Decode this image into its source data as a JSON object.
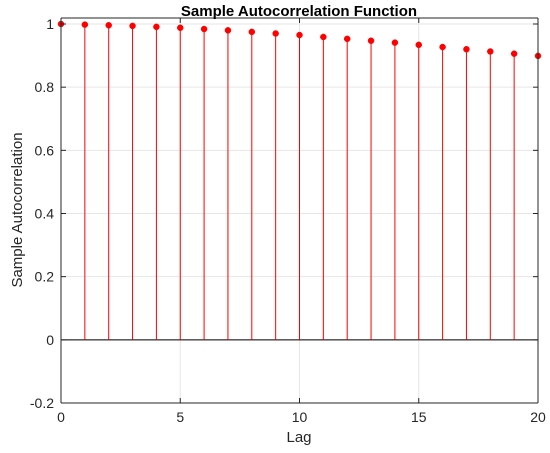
{
  "chart_data": {
    "type": "stem",
    "title": "Sample Autocorrelation Function",
    "xlabel": "Lag",
    "ylabel": "Sample Autocorrelation",
    "xlim": [
      0,
      20
    ],
    "ylim": [
      -0.2,
      1
    ],
    "x_ticks": [
      0,
      5,
      10,
      15,
      20
    ],
    "x_tick_labels": [
      "0",
      "5",
      "10",
      "15",
      "20"
    ],
    "y_ticks": [
      -0.2,
      0,
      0.2,
      0.4,
      0.6,
      0.8,
      1
    ],
    "y_tick_labels": [
      "-0.2",
      "0",
      "0.2",
      "0.4",
      "0.6",
      "0.8",
      "1"
    ],
    "grid": true,
    "legend": "none",
    "series": [
      {
        "x": [
          0,
          1,
          2,
          3,
          4,
          5,
          6,
          7,
          8,
          9,
          10,
          11,
          12,
          13,
          14,
          15,
          16,
          17,
          18,
          19,
          20
        ],
        "values": [
          1.0,
          0.998,
          0.996,
          0.994,
          0.991,
          0.988,
          0.984,
          0.98,
          0.975,
          0.97,
          0.965,
          0.959,
          0.953,
          0.947,
          0.941,
          0.934,
          0.927,
          0.92,
          0.913,
          0.906,
          0.899
        ],
        "color": "#ff0000"
      }
    ],
    "zero_line_color": "#000000"
  }
}
